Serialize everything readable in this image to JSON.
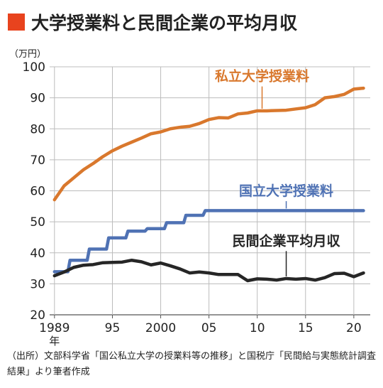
{
  "title": "大学授業料と民間企業の平均月収",
  "source": "（出所）文部科学省「国公私立大学の授業料等の推移」と国税庁「民間給与実態統計調査結果」より筆者作成",
  "chart_data": {
    "type": "line",
    "title": "大学授業料と民間企業の平均月収",
    "unit_label": "（万円）",
    "ylim": [
      20,
      100
    ],
    "yticks": [
      20,
      30,
      40,
      50,
      60,
      70,
      80,
      90,
      100
    ],
    "xlim": [
      1988.5,
      2021.7
    ],
    "xticks": [
      {
        "value": 1989,
        "label": "1989",
        "sublabel": "年"
      },
      {
        "value": 1995,
        "label": "95"
      },
      {
        "value": 2000,
        "label": "2000"
      },
      {
        "value": 2005,
        "label": "05"
      },
      {
        "value": 2010,
        "label": "10"
      },
      {
        "value": 2015,
        "label": "15"
      },
      {
        "value": 2020,
        "label": "20"
      }
    ],
    "grid": true,
    "x": [
      1989,
      1990,
      1991,
      1992,
      1993,
      1994,
      1995,
      1996,
      1997,
      1998,
      1999,
      2000,
      2001,
      2002,
      2003,
      2004,
      2005,
      2006,
      2007,
      2008,
      2009,
      2010,
      2011,
      2012,
      2013,
      2014,
      2015,
      2016,
      2017,
      2018,
      2019,
      2020,
      2021
    ],
    "series": [
      {
        "name": "私立大学授業料",
        "color": "#d9782d",
        "label_year": 2010.5,
        "label_value": 95.5,
        "values": [
          57.1,
          61.6,
          64.2,
          66.8,
          68.8,
          71.0,
          72.9,
          74.4,
          75.7,
          77.0,
          78.4,
          79.0,
          80.0,
          80.5,
          80.8,
          81.7,
          83.0,
          83.6,
          83.5,
          84.8,
          85.1,
          85.8,
          85.8,
          85.9,
          86.0,
          86.4,
          86.8,
          87.8,
          90.0,
          90.4,
          91.1,
          92.8,
          93.1
        ],
        "step": false
      },
      {
        "name": "国立大学授業料",
        "color": "#4f72b4",
        "label_year": 2013,
        "label_value": 58.5,
        "values": [
          33.9,
          33.9,
          37.6,
          37.6,
          41.2,
          41.2,
          44.8,
          44.8,
          47.0,
          47.0,
          47.8,
          47.8,
          49.7,
          49.7,
          52.1,
          52.1,
          53.6,
          53.6,
          53.6,
          53.6,
          53.6,
          53.6,
          53.6,
          53.6,
          53.6,
          53.6,
          53.6,
          53.6,
          53.6,
          53.6,
          53.6,
          53.6,
          53.6
        ],
        "step": true
      },
      {
        "name": "民間企業平均月収",
        "color": "#262626",
        "label_year": 2013,
        "label_value": 42.4,
        "values": [
          32.6,
          33.8,
          35.3,
          36.0,
          36.2,
          36.8,
          36.9,
          37.0,
          37.6,
          37.1,
          36.1,
          36.7,
          35.8,
          34.8,
          33.5,
          33.8,
          33.5,
          33.0,
          33.0,
          33.0,
          31.0,
          31.6,
          31.5,
          31.2,
          31.7,
          31.5,
          31.7,
          31.2,
          32.0,
          33.3,
          33.4,
          32.3,
          33.5
        ],
        "step": false
      }
    ]
  }
}
